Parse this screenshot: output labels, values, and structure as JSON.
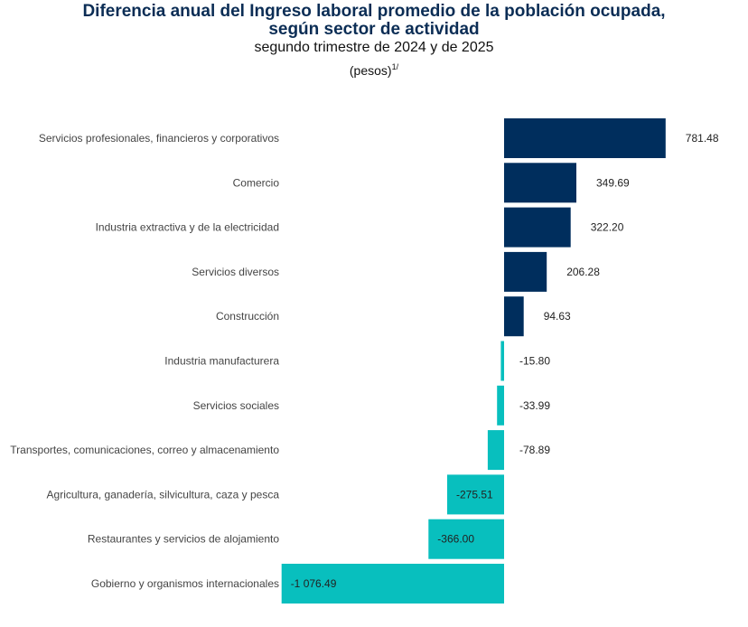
{
  "header": {
    "title_line1": "Diferencia anual del Ingreso laboral promedio de la población ocupada,",
    "title_line2": "según sector de actividad",
    "subtitle": "segundo trimestre de 2024 y de 2025",
    "units": "(pesos)",
    "units_note": "1/"
  },
  "chart_data": {
    "type": "bar",
    "orientation": "horizontal",
    "title": "Diferencia anual del Ingreso laboral promedio de la población ocupada, según sector de actividad",
    "subtitle": "segundo trimestre de 2024 y de 2025",
    "units": "pesos",
    "xlabel": "",
    "ylabel": "",
    "grid": false,
    "legend": "none",
    "colors": {
      "positive": "#002e5d",
      "negative": "#08bfbe"
    },
    "categories": [
      "Servicios profesionales, financieros y corporativos",
      "Comercio",
      "Industria extractiva y de la electricidad",
      "Servicios diversos",
      "Construcción",
      "Industria manufacturera",
      "Servicios sociales",
      "Transportes, comunicaciones, correo y almacenamiento",
      "Agricultura, ganadería, silvicultura, caza y pesca",
      "Restaurantes y servicios de alojamiento",
      "Gobierno y organismos internacionales"
    ],
    "values": [
      781.48,
      349.69,
      322.2,
      206.28,
      94.63,
      -15.8,
      -33.99,
      -78.89,
      -275.51,
      -366.0,
      -1076.49
    ],
    "value_labels": [
      "781.48",
      "349.69",
      "322.20",
      "206.28",
      "94.63",
      "-15.80",
      "-33.99",
      "-78.89",
      "-275.51",
      "-366.00",
      "-1 076.49"
    ]
  }
}
